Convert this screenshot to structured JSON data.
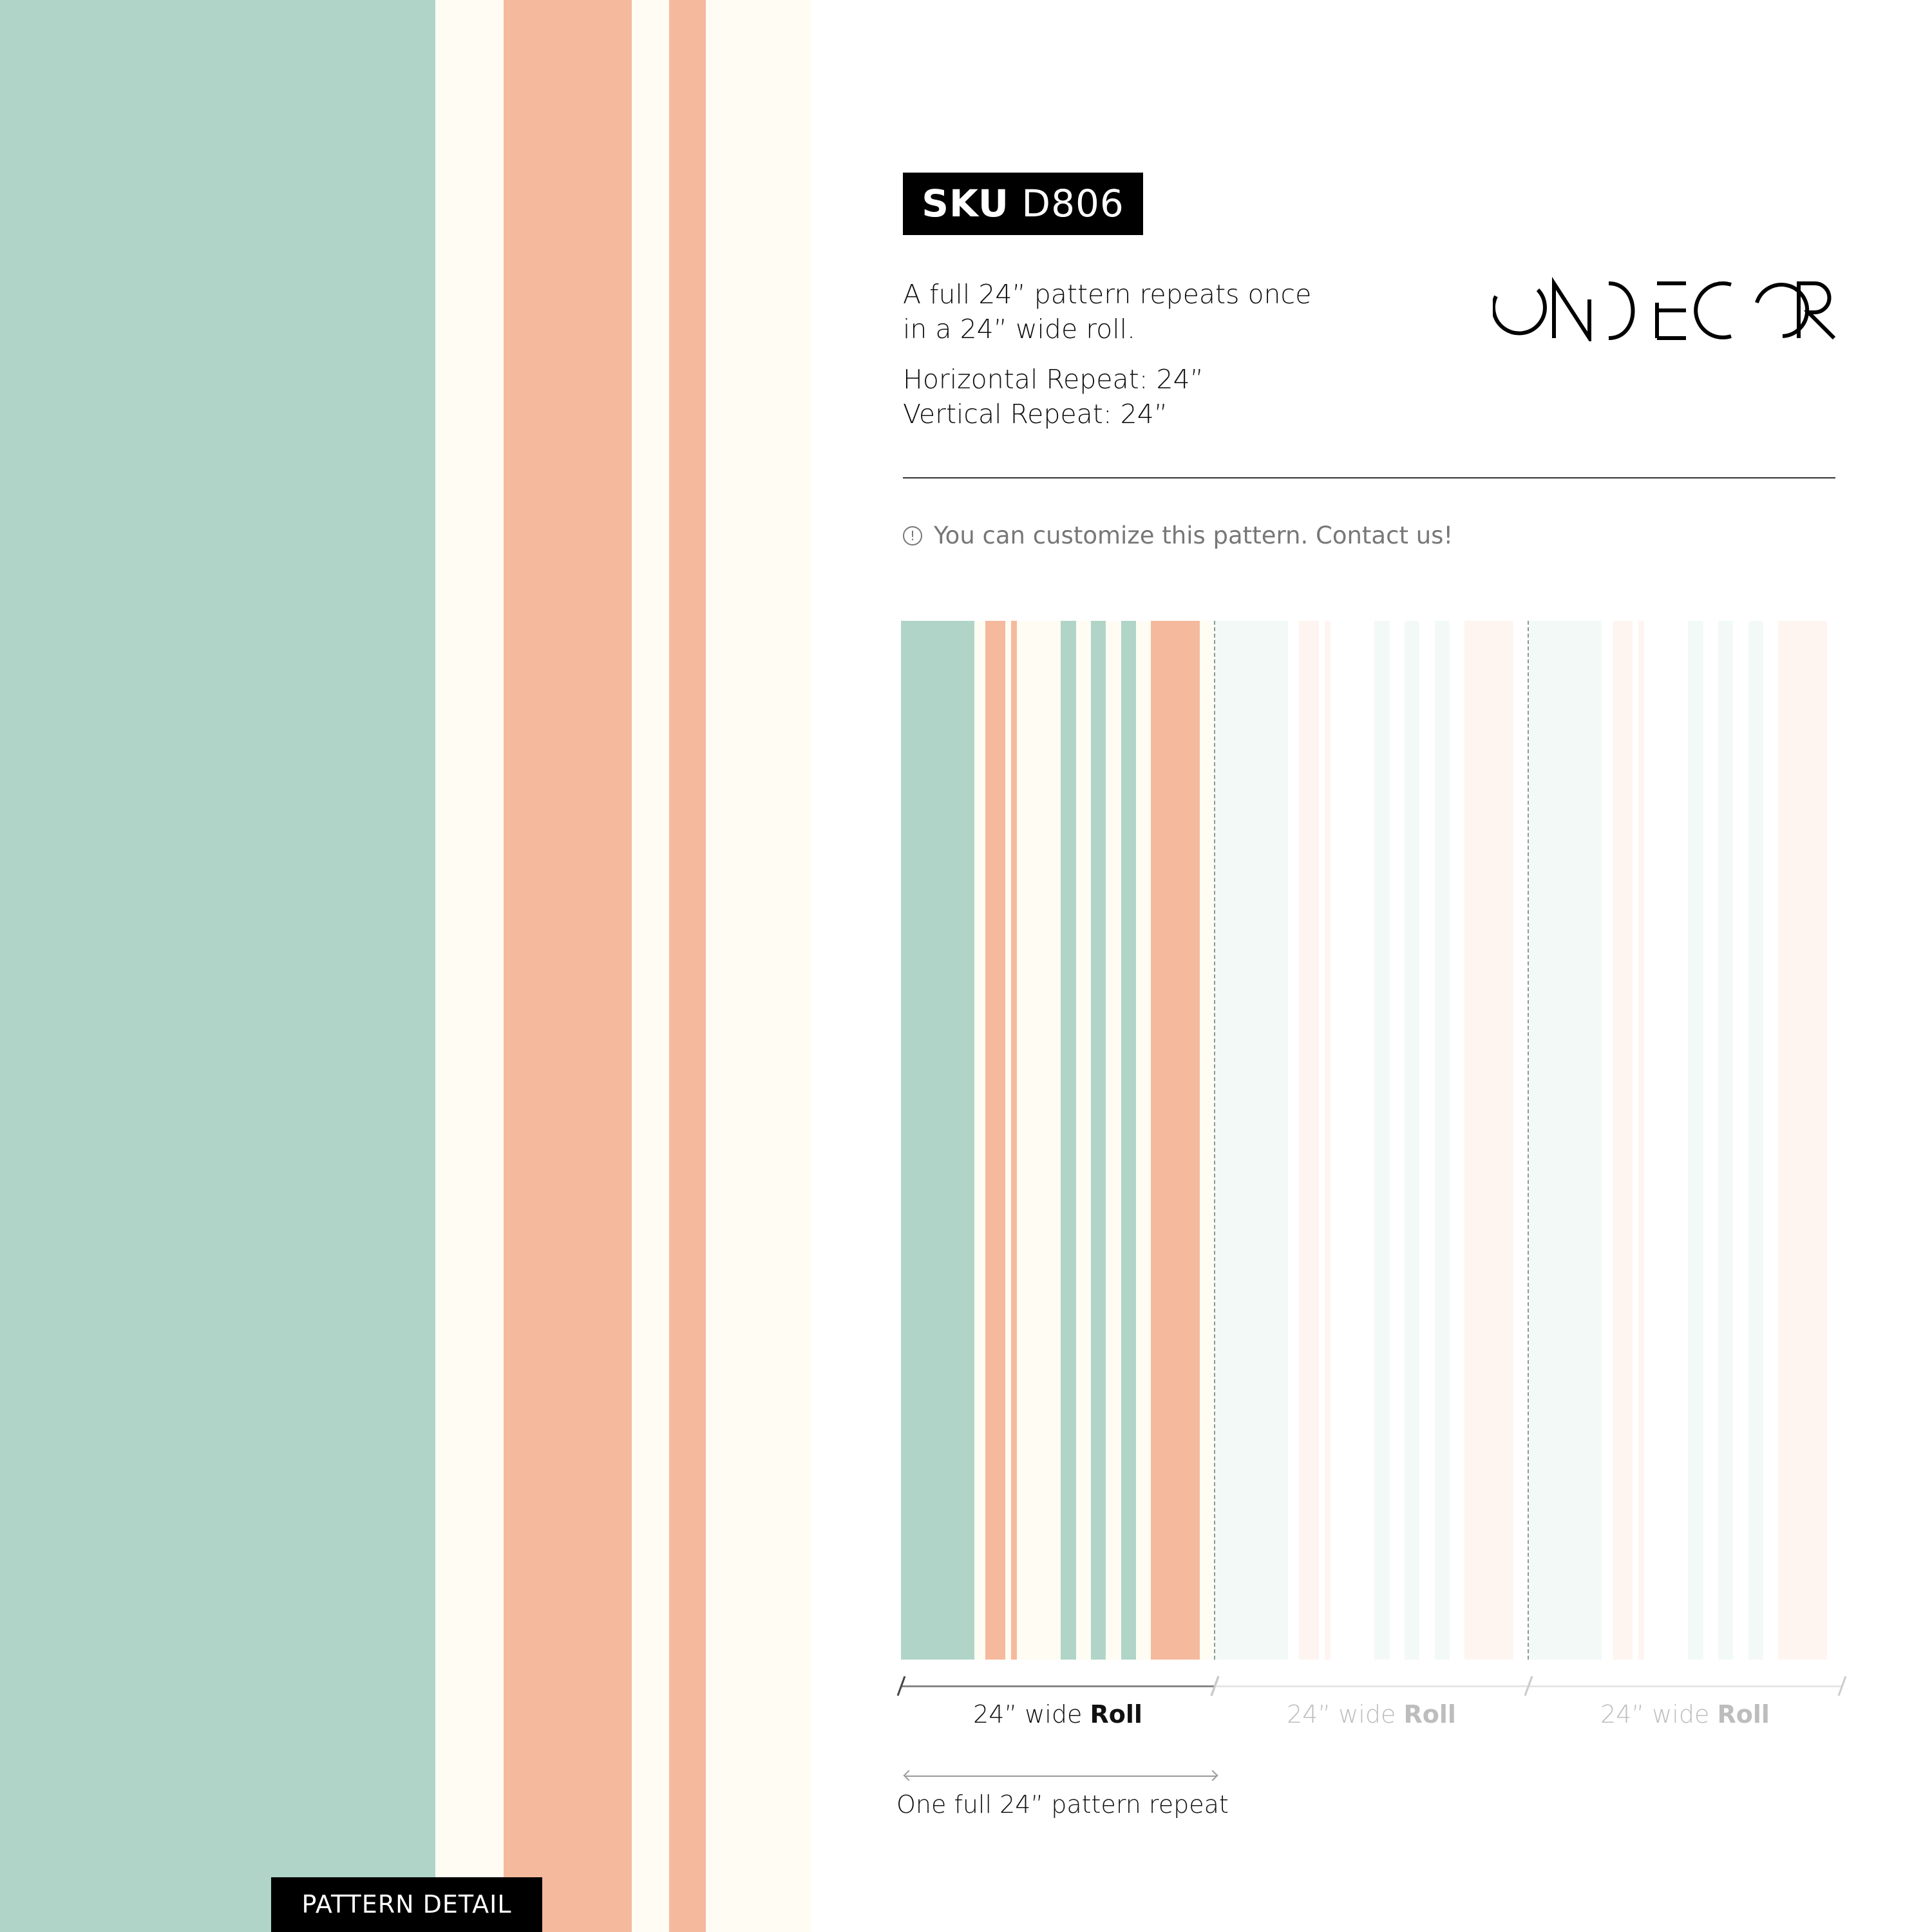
{
  "sku": {
    "label": "SKU",
    "code": "D806"
  },
  "description": {
    "line1": "A full 24” pattern repeats once",
    "line2": "in a 24” wide roll.",
    "horizontal_repeat": "Horizontal Repeat: 24”",
    "vertical_repeat": "Vertical Repeat: 24”"
  },
  "brand": {
    "logo_text": "ONDECOR"
  },
  "info": {
    "icon": "info-circle-icon",
    "text": "You can customize this pattern. Contact us!"
  },
  "rolls": [
    {
      "prefix": "24” wide ",
      "bold": "Roll",
      "active": true
    },
    {
      "prefix": "24” wide ",
      "bold": "Roll",
      "active": false
    },
    {
      "prefix": "24” wide ",
      "bold": "Roll",
      "active": false
    }
  ],
  "repeat_label": "One full 24” pattern repeat",
  "pattern_detail_label": "PATTERN DETAIL",
  "colors": {
    "teal": "#b0d5c8",
    "salmon": "#f5b99e",
    "cream": "#fffcf4",
    "black": "#000000"
  }
}
